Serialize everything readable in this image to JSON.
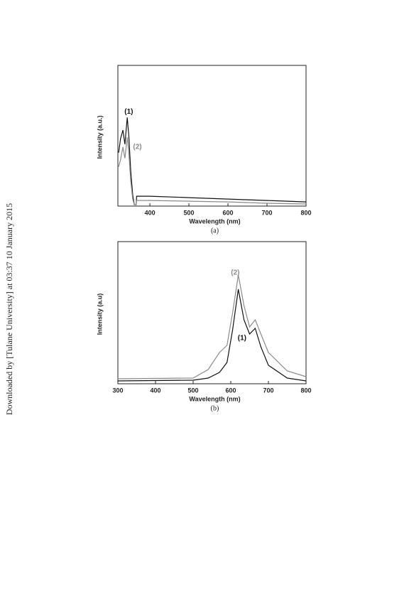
{
  "sidebar": "Downloaded by [Tulane University] at 03:37 10 January 2015",
  "chart_data": [
    {
      "type": "line",
      "caption": "(a)",
      "xlabel": "Wavelength (nm)",
      "ylabel": "Intensity (a.u.)",
      "xlim": [
        318,
        800
      ],
      "ylim": [
        0,
        100
      ],
      "xticks": [
        400,
        500,
        600,
        700,
        800
      ],
      "x": [
        320,
        325,
        331,
        336,
        342,
        346,
        351,
        356,
        360,
        365,
        366,
        400,
        500,
        600,
        700,
        800
      ],
      "series": [
        {
          "name": "(1)",
          "color": "#111111",
          "values": [
            38,
            48,
            54,
            44,
            63,
            50,
            25,
            8,
            1,
            1,
            7,
            7,
            6,
            5,
            4,
            3
          ]
        },
        {
          "name": "(2)",
          "color": "#8a8a8a",
          "values": [
            28,
            33,
            42,
            34,
            49,
            38,
            18,
            5,
            1,
            1,
            4,
            4,
            3.5,
            3,
            2,
            1.5
          ]
        }
      ],
      "annotations": [
        {
          "text": "(1)",
          "x": 346,
          "y": 67,
          "color": "#111111"
        },
        {
          "text": "(2)",
          "x": 368,
          "y": 42,
          "color": "#8a8a8a"
        }
      ]
    },
    {
      "type": "line",
      "caption": "(b)",
      "xlabel": "Wavelength (nm)",
      "ylabel": "Intensity (a.u)",
      "xlim": [
        300,
        800
      ],
      "ylim": [
        0,
        100
      ],
      "xticks": [
        300,
        400,
        500,
        600,
        700,
        800
      ],
      "x": [
        300,
        500,
        540,
        570,
        590,
        605,
        620,
        635,
        650,
        665,
        680,
        700,
        750,
        800
      ],
      "series": [
        {
          "name": "(1)",
          "color": "#111111",
          "values": [
            2,
            2.5,
            4,
            8,
            15,
            38,
            66.5,
            45,
            35,
            39,
            26,
            13,
            4,
            2
          ]
        },
        {
          "name": "(2)",
          "color": "#8a8a8a",
          "values": [
            3.5,
            4,
            10,
            22,
            27,
            50,
            76.5,
            55,
            40,
            45,
            35,
            22,
            9,
            5
          ]
        }
      ],
      "annotations": [
        {
          "text": "(2)",
          "x": 612,
          "y": 78,
          "color": "#8a8a8a"
        },
        {
          "text": "(1)",
          "x": 630,
          "y": 32,
          "color": "#111111"
        }
      ]
    }
  ]
}
